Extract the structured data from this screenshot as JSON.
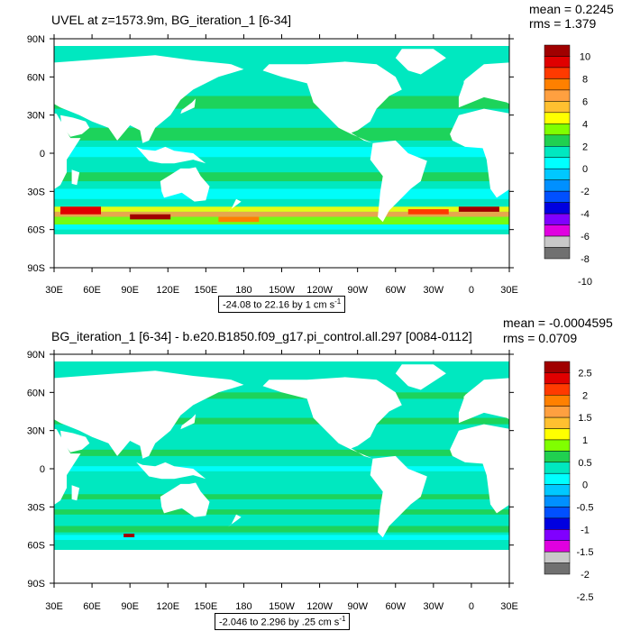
{
  "panels": [
    {
      "title": "UVEL at z=1573.9m, BG_iteration_1 [6-34]",
      "mean": "mean = 0.2245",
      "rms": "rms = 1.379",
      "range_text": "-24.08 to 22.16 by 1 cm s",
      "range_unit_exp": "-1",
      "colorbar_labels": [
        "10",
        "8",
        "6",
        "4",
        "2",
        "0",
        "-2",
        "-4",
        "-6",
        "-8",
        "-10"
      ]
    },
    {
      "title": "BG_iteration_1 [6-34] - b.e20.B1850.f09_g17.pi_control.all.297 [0084-0112]",
      "mean": "mean = -0.0004595",
      "rms": "rms = 0.0709",
      "range_text": "-2.046 to 2.296 by .25 cm s",
      "range_unit_exp": "-1",
      "colorbar_labels": [
        "2.5",
        "2",
        "1.5",
        "1",
        "0.5",
        "0",
        "-0.5",
        "-1",
        "-1.5",
        "-2",
        "-2.5"
      ]
    }
  ],
  "lat_labels": [
    "90N",
    "60N",
    "30N",
    "0",
    "30S",
    "60S",
    "90S"
  ],
  "lon_labels": [
    "30E",
    "60E",
    "90E",
    "120E",
    "150E",
    "180",
    "150W",
    "120W",
    "90W",
    "60W",
    "30W",
    "0",
    "30E"
  ],
  "colors": {
    "palette": [
      "#a00000",
      "#e00000",
      "#ff3a00",
      "#ff8000",
      "#ffa040",
      "#ffc030",
      "#ffff00",
      "#80ff00",
      "#20d050",
      "#00e8c0",
      "#00ffff",
      "#00c8ff",
      "#0090ff",
      "#0050ff",
      "#0000e0",
      "#8000ff",
      "#e000e0",
      "#c8c8c8",
      "#707070"
    ],
    "ocean_base": "#00e8c0"
  }
}
